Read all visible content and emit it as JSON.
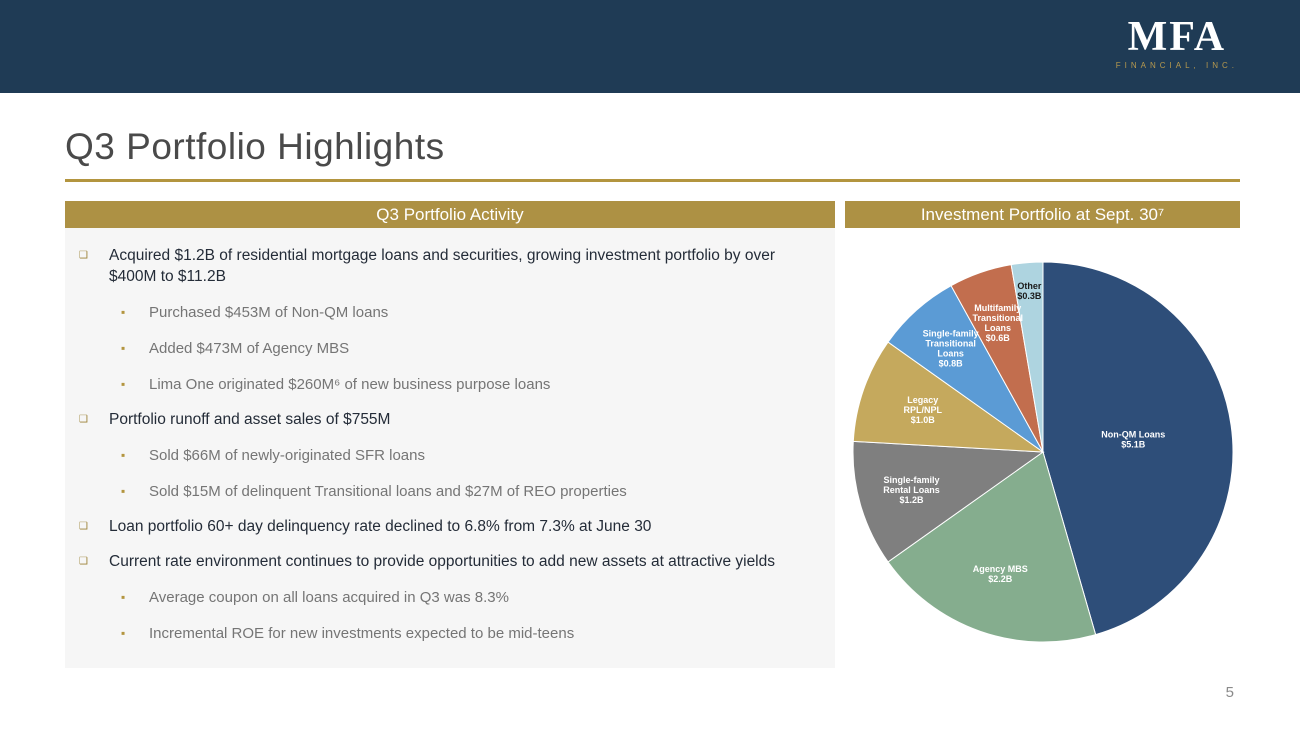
{
  "header": {
    "logo_name": "MFA",
    "logo_subtitle": "FINANCIAL, INC."
  },
  "page": {
    "title": "Q3 Portfolio Highlights",
    "page_number": "5"
  },
  "activity": {
    "header": "Q3 Portfolio Activity",
    "bullets": [
      {
        "level": 1,
        "text": "Acquired $1.2B of residential mortgage loans and securities, growing investment portfolio by over $400M to $11.2B"
      },
      {
        "level": 2,
        "text": "Purchased $453M of Non-QM loans"
      },
      {
        "level": 2,
        "text": "Added $473M of Agency MBS"
      },
      {
        "level": 2,
        "text": "Lima One originated $260M⁶ of new business purpose loans"
      },
      {
        "level": 1,
        "text": "Portfolio runoff and asset sales of $755M"
      },
      {
        "level": 2,
        "text": "Sold $66M of newly-originated SFR loans"
      },
      {
        "level": 2,
        "text": "Sold $15M of delinquent Transitional loans and $27M of REO properties"
      },
      {
        "level": 1,
        "text": "Loan portfolio 60+ day delinquency rate declined to 6.8% from 7.3% at June 30"
      },
      {
        "level": 1,
        "text": "Current rate environment continues to provide opportunities to add new assets at attractive yields"
      },
      {
        "level": 2,
        "text": "Average coupon on all loans acquired in Q3 was 8.3%"
      },
      {
        "level": 2,
        "text": "Incremental ROE for new investments expected to be mid-teens"
      }
    ]
  },
  "portfolio": {
    "header": "Investment Portfolio at Sept. 30⁷"
  },
  "chart_data": {
    "type": "pie",
    "title": "Investment Portfolio at Sept. 30",
    "units": "USD billions",
    "total": 11.2,
    "start_angle_deg": 0,
    "direction": "clockwise",
    "slices": [
      {
        "id": "non-qm-loans",
        "label": "Non-QM Loans",
        "value": 5.1,
        "display": "$5.1B",
        "color": "#2e4e79",
        "label_color": "#ffffff",
        "label_lines": [
          "Non-QM Loans",
          "$5.1B"
        ],
        "label_r": 0.48
      },
      {
        "id": "agency-mbs",
        "label": "Agency MBS",
        "value": 2.2,
        "display": "$2.2B",
        "color": "#85ad8e",
        "label_color": "#ffffff",
        "label_lines": [
          "Agency MBS",
          "$2.2B"
        ],
        "label_r": 0.68
      },
      {
        "id": "single-family-rental-loans",
        "label": "Single-family Rental Loans",
        "value": 1.2,
        "display": "$1.2B",
        "color": "#7f7f7f",
        "label_color": "#ffffff",
        "label_lines": [
          "Single-family",
          "Rental Loans",
          "$1.2B"
        ],
        "label_r": 0.72
      },
      {
        "id": "legacy-rpl-npl",
        "label": "Legacy RPL/NPL",
        "value": 1.0,
        "display": "$1.0B",
        "color": "#c5a95d",
        "label_color": "#ffffff",
        "label_lines": [
          "Legacy",
          "RPL/NPL",
          "$1.0B"
        ],
        "label_r": 0.67
      },
      {
        "id": "single-family-transitional-loans",
        "label": "Single-family Transitional Loans",
        "value": 0.8,
        "display": "$0.8B",
        "color": "#5b9bd5",
        "label_color": "#ffffff",
        "label_lines": [
          "Single-family",
          "Transitional",
          "Loans",
          "$0.8B"
        ],
        "label_r": 0.73
      },
      {
        "id": "multifamily-transitional-loans",
        "label": "Multifamily Transitional Loans",
        "value": 0.6,
        "display": "$0.6B",
        "color": "#c26e4e",
        "label_color": "#ffffff",
        "label_lines": [
          "Multifamily",
          "Transitional",
          "Loans",
          "$0.6B"
        ],
        "label_r": 0.72
      },
      {
        "id": "other",
        "label": "Other",
        "value": 0.3,
        "display": "$0.3B",
        "color": "#aed4e0",
        "label_color": "#1a1a1a",
        "label_lines": [
          "Other",
          "$0.3B"
        ],
        "label_r": 0.85
      }
    ]
  }
}
